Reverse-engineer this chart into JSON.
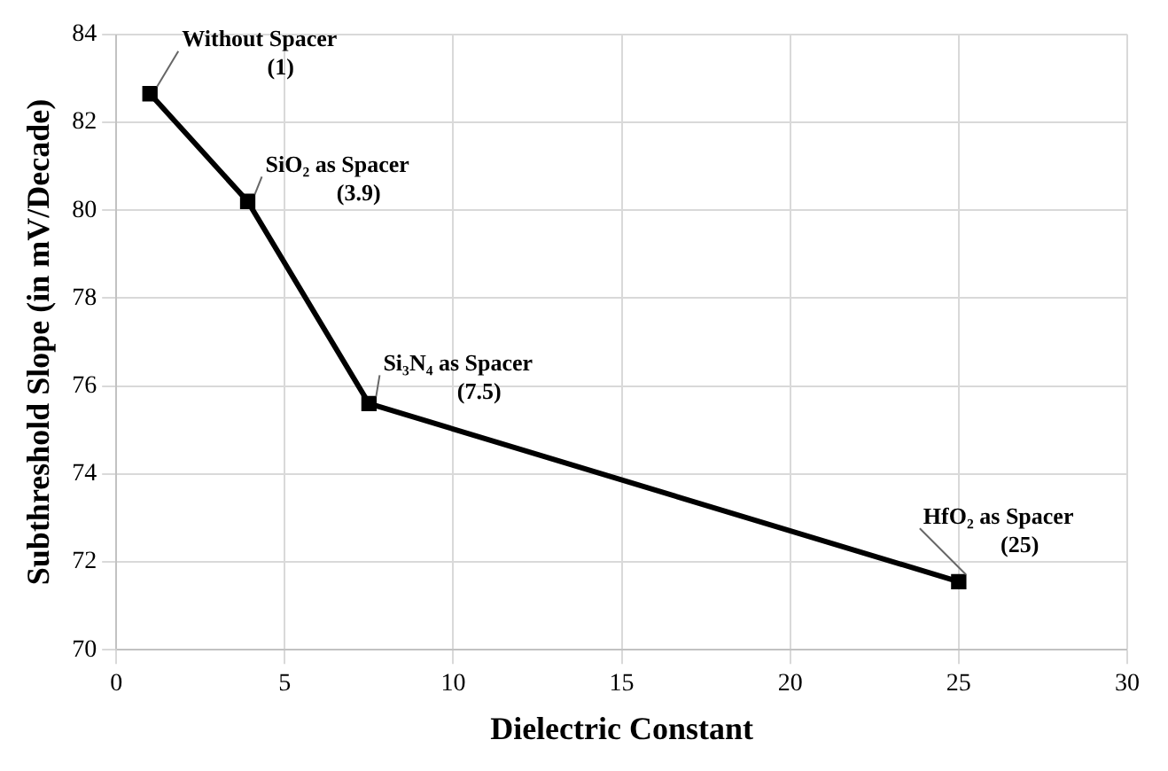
{
  "chart_data": {
    "type": "line",
    "xlabel": "Dielectric Constant",
    "ylabel": "Subthreshold Slope (in mV/Decade)",
    "x": [
      1,
      3.9,
      7.5,
      25
    ],
    "series": [
      {
        "color": "#000000",
        "values": [
          82.65,
          80.2,
          75.6,
          71.55
        ]
      }
    ],
    "xlim": [
      0,
      30
    ],
    "xticks": [
      0,
      5,
      10,
      15,
      20,
      25,
      30
    ],
    "ylim": [
      70,
      84
    ],
    "yticks": [
      70,
      72,
      74,
      76,
      78,
      80,
      82,
      84
    ],
    "grid": true,
    "legend": false,
    "marker": "square",
    "line_style": "solid",
    "annotations": [
      {
        "text": "Without Spacer\n(1)",
        "x": 1,
        "y": 82.65
      },
      {
        "text": "SiO₂ as Spacer\n(3.9)",
        "x": 3.9,
        "y": 80.2
      },
      {
        "text": "Si₃N₄ as Spacer\n(7.5)",
        "x": 7.5,
        "y": 75.6
      },
      {
        "text": "HfO₂ as Spacer\n(25)",
        "x": 25,
        "y": 71.55
      }
    ]
  }
}
